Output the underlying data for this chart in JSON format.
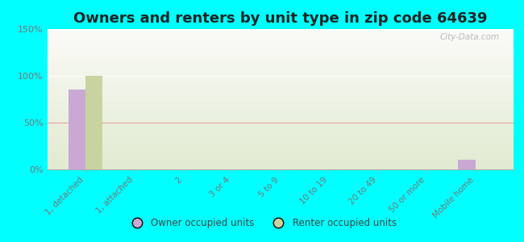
{
  "title": "Owners and renters by unit type in zip code 64639",
  "categories": [
    "1, detached",
    "1, attached",
    "2",
    "3 or 4",
    "5 to 9",
    "10 to 19",
    "20 to 49",
    "50 or more",
    "Mobile home"
  ],
  "owner_values": [
    85,
    0,
    0,
    0,
    0,
    0,
    0,
    0,
    10
  ],
  "renter_values": [
    100,
    0,
    0,
    0,
    0,
    0,
    0,
    0,
    0
  ],
  "owner_color": "#c9a8d4",
  "renter_color": "#c8d4a0",
  "background_color": "#00ffff",
  "plot_bg_color": "#e8f0d0",
  "ylim": [
    0,
    150
  ],
  "yticks": [
    0,
    50,
    100,
    150
  ],
  "ytick_labels": [
    "0%",
    "50%",
    "100%",
    "150%"
  ],
  "bar_width": 0.35,
  "title_fontsize": 13,
  "legend_labels": [
    "Owner occupied units",
    "Renter occupied units"
  ],
  "watermark": "City-Data.com"
}
